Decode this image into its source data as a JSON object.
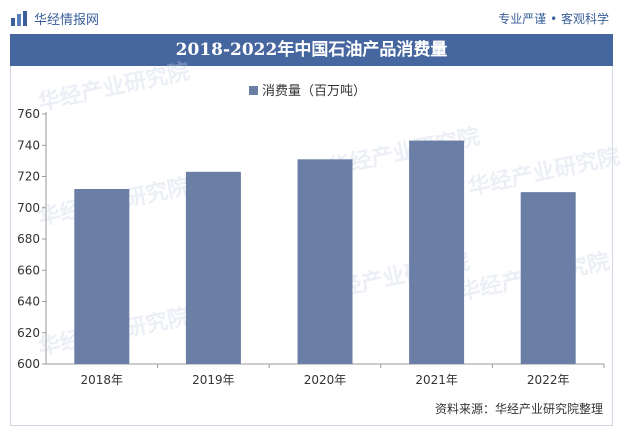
{
  "header": {
    "brand": "华经情报网",
    "slogan": "专业严谨 • 客观科学"
  },
  "watermark": "华经产业研究院",
  "source": "资料来源：华经产业研究院整理",
  "colors": {
    "title_bg": "#46669f",
    "bar": "#6b7fa6",
    "brand": "#3a5f9a"
  },
  "chart_data": {
    "type": "bar",
    "title": "2018-2022年中国石油产品消费量",
    "categories": [
      "2018年",
      "2019年",
      "2020年",
      "2021年",
      "2022年"
    ],
    "series": [
      {
        "name": "消费量（百万吨）",
        "values": [
          712,
          723,
          731,
          743,
          710
        ]
      }
    ],
    "ylim": [
      600,
      760
    ],
    "yticks": [
      600,
      620,
      640,
      660,
      680,
      700,
      720,
      740,
      760
    ],
    "legend": "top-center",
    "grid": false
  }
}
